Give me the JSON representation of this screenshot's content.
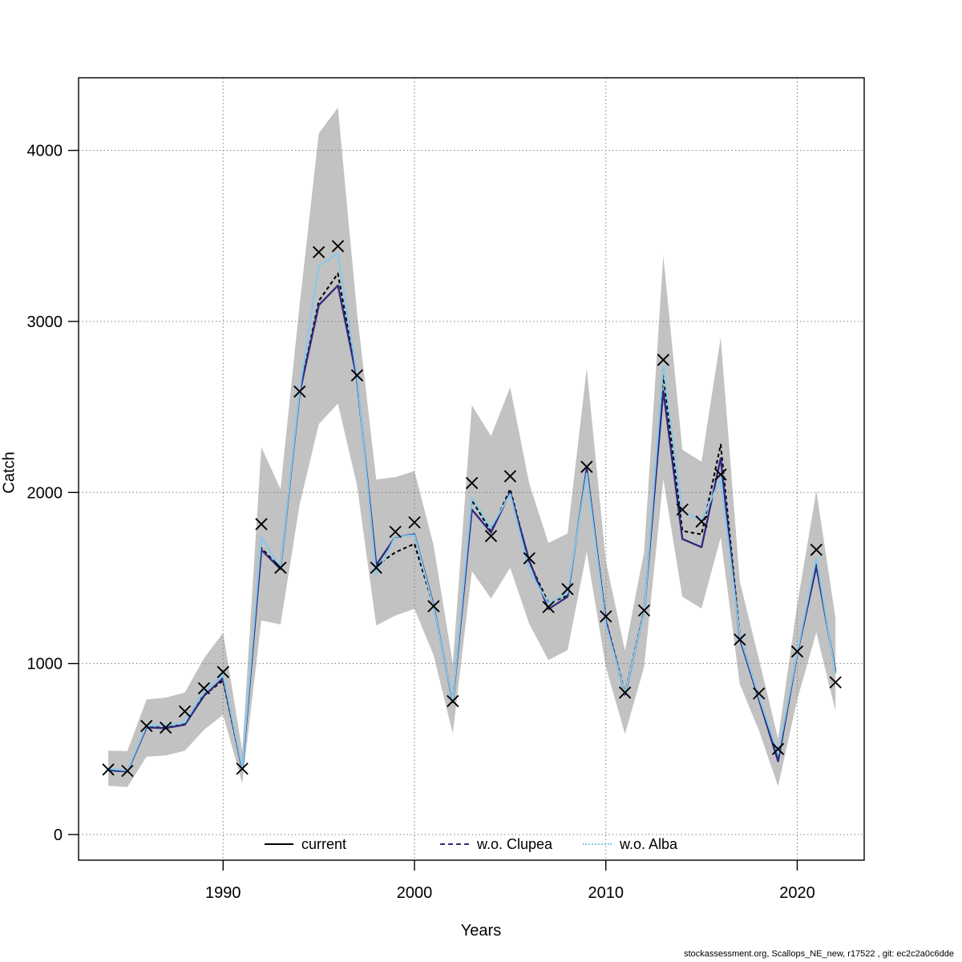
{
  "footer": {
    "text": "stockassessment.org, Scallops_NE_new, r17522 , git: ec2c2a0c6dde"
  },
  "chart_data": {
    "type": "line",
    "title": "",
    "xlabel": "Years",
    "ylabel": "Catch",
    "grid": "dotted",
    "legend_position": "bottom-center-inside",
    "xlim": [
      1982.4,
      2023.5
    ],
    "ylim": [
      -180,
      4430
    ],
    "x_ticks": [
      1990,
      2000,
      2010,
      2020
    ],
    "y_ticks": [
      0,
      1000,
      2000,
      3000,
      4000
    ],
    "x_tick_labels": [
      "1990",
      "2000",
      "2010",
      "2020"
    ],
    "y_tick_labels": [
      "0",
      "1000",
      "2000",
      "3000",
      "4000"
    ],
    "years": [
      1984,
      1985,
      1986,
      1987,
      1988,
      1989,
      1990,
      1991,
      1992,
      1993,
      1994,
      1995,
      1996,
      1997,
      1998,
      1999,
      2000,
      2001,
      2002,
      2003,
      2004,
      2005,
      2006,
      2007,
      2008,
      2009,
      2010,
      2011,
      2012,
      2013,
      2014,
      2015,
      2016,
      2017,
      2018,
      2019,
      2020,
      2021,
      2022
    ],
    "band": {
      "name": "confidence-band",
      "color": "#c2c2c2",
      "upper": [
        490,
        488,
        790,
        800,
        830,
        1030,
        1180,
        490,
        2265,
        2020,
        3100,
        4100,
        4250,
        3050,
        2075,
        2090,
        2125,
        1690,
        1000,
        2510,
        2330,
        2615,
        2050,
        1705,
        1760,
        2725,
        1600,
        1075,
        1655,
        3385,
        2250,
        2180,
        2905,
        1480,
        1025,
        560,
        1345,
        2010,
        1265
      ],
      "lower": [
        285,
        278,
        455,
        462,
        490,
        612,
        700,
        300,
        1252,
        1228,
        1930,
        2400,
        2520,
        2040,
        1222,
        1280,
        1320,
        1048,
        590,
        1540,
        1380,
        1560,
        1230,
        1020,
        1078,
        1652,
        980,
        588,
        980,
        2078,
        1390,
        1322,
        1738,
        880,
        608,
        282,
        790,
        1182,
        722
      ]
    },
    "series": [
      {
        "name": "current",
        "color": "#000000",
        "plot_style": "dashed",
        "legend_style": "solid",
        "values": [
          378,
          370,
          628,
          625,
          645,
          815,
          900,
          383,
          1675,
          1558,
          2588,
          3120,
          3280,
          2655,
          1572,
          1650,
          1700,
          1332,
          778,
          1955,
          1772,
          2020,
          1592,
          1355,
          1396,
          2135,
          1255,
          828,
          1308,
          2688,
          1775,
          1755,
          2280,
          1165,
          800,
          455,
          1062,
          1578,
          948
        ]
      },
      {
        "name": "w.o. Clupea",
        "color": "#2d2a80",
        "plot_style": "solid",
        "legend_style": "dashed",
        "values": [
          376,
          368,
          626,
          622,
          642,
          810,
          915,
          381,
          1665,
          1552,
          2582,
          3095,
          3210,
          2662,
          1576,
          1740,
          1755,
          1340,
          774,
          1900,
          1765,
          2000,
          1600,
          1318,
          1390,
          2140,
          1248,
          818,
          1302,
          2595,
          1728,
          1680,
          2200,
          1145,
          790,
          428,
          1058,
          1568,
          958
        ]
      },
      {
        "name": "w.o. Alba",
        "color": "#86c9ea",
        "plot_style": "solid",
        "legend_style": "dotted",
        "values": [
          385,
          374,
          636,
          640,
          656,
          836,
          935,
          390,
          1740,
          1560,
          2598,
          3325,
          3398,
          2682,
          1520,
          1742,
          1750,
          1330,
          780,
          1970,
          1795,
          1990,
          1540,
          1352,
          1412,
          2112,
          1230,
          824,
          1298,
          2740,
          1888,
          1836,
          2082,
          1162,
          806,
          468,
          1064,
          1618,
          938
        ]
      }
    ],
    "observations": {
      "name": "observed catch (x markers)",
      "marker": "x",
      "color": "#000000",
      "values": [
        380,
        372,
        635,
        625,
        720,
        855,
        950,
        385,
        1815,
        1560,
        2590,
        3405,
        3440,
        2685,
        1560,
        1770,
        1825,
        1335,
        780,
        2055,
        1745,
        2095,
        1615,
        1330,
        1435,
        2150,
        1275,
        830,
        1310,
        2775,
        1900,
        1830,
        2105,
        1140,
        825,
        500,
        1070,
        1665,
        890
      ]
    }
  }
}
